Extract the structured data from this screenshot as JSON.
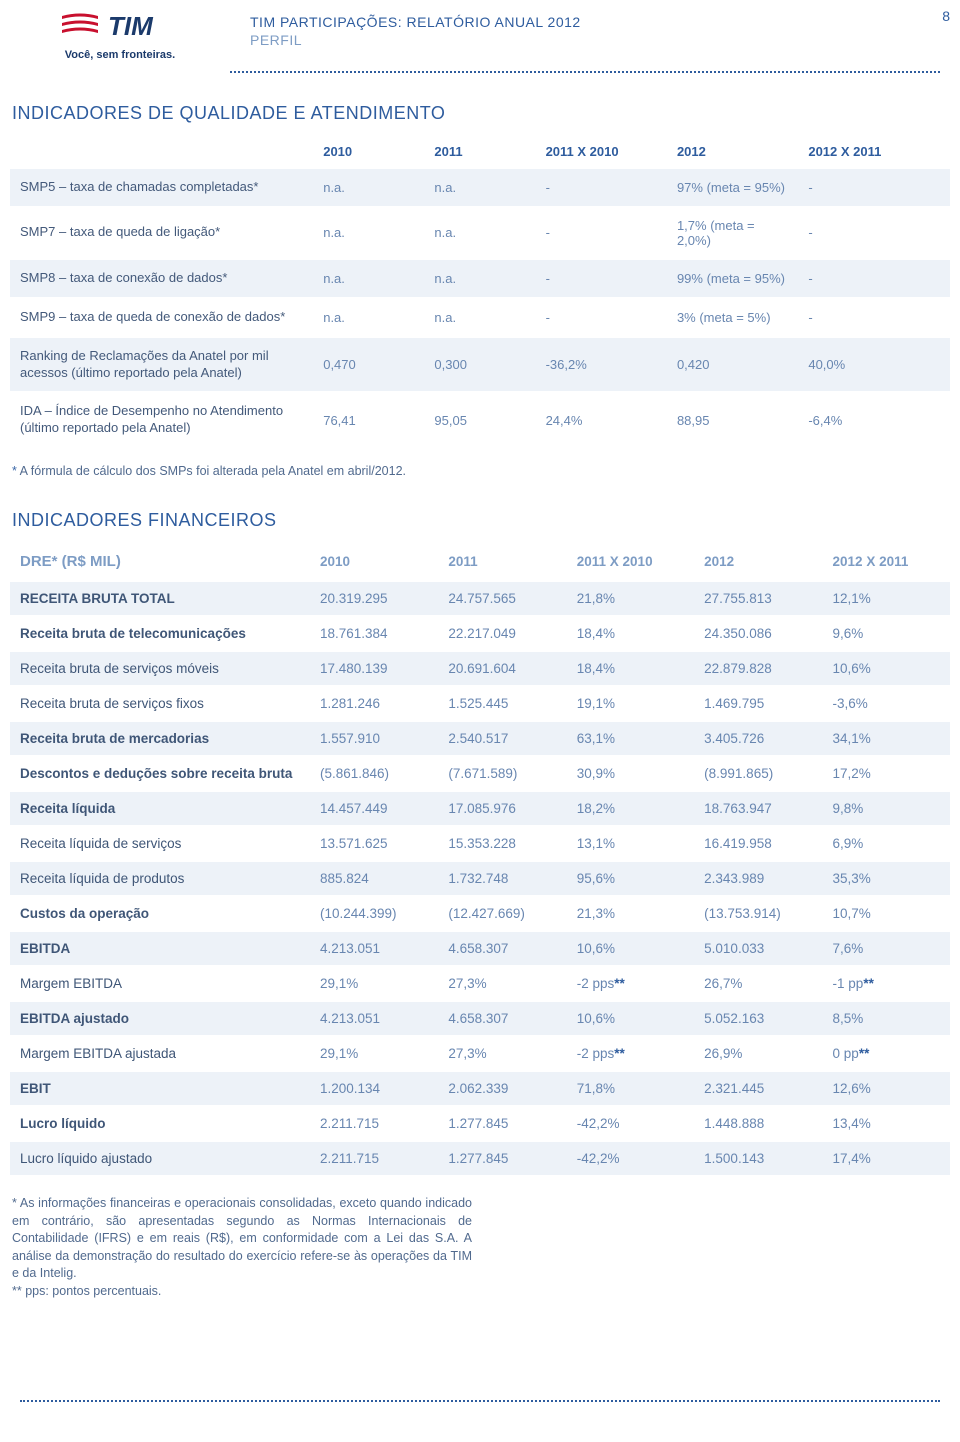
{
  "header": {
    "logo_name": "TIM",
    "tagline": "Você, sem fronteiras.",
    "title": "TIM PARTICIPAÇÕES: RELATÓRIO ANUAL 2012",
    "subtitle": "PERFIL",
    "page_num": "8"
  },
  "colors": {
    "brand_blue": "#2e5c9e",
    "light_blue": "#7d9cc4",
    "value_blue": "#6886b0",
    "zebra": "#edf2f8",
    "logo_red": "#c8102e"
  },
  "quality": {
    "title": "INDICADORES DE QUALIDADE E ATENDIMENTO",
    "columns": [
      "",
      "2010",
      "2011",
      "2011 X 2010",
      "2012",
      "2012 X 2011"
    ],
    "rows": [
      {
        "label": "SMP5 – taxa de chamadas completadas*",
        "v": [
          "n.a.",
          "n.a.",
          "-",
          "97% (meta = 95%)",
          "-"
        ],
        "zebra": true
      },
      {
        "label": "SMP7 – taxa de queda de ligação*",
        "v": [
          "n.a.",
          "n.a.",
          "-",
          "1,7% (meta = 2,0%)",
          "-"
        ],
        "zebra": false
      },
      {
        "label": "SMP8 – taxa de conexão de dados*",
        "v": [
          "n.a.",
          "n.a.",
          "-",
          "99% (meta = 95%)",
          "-"
        ],
        "zebra": true
      },
      {
        "label": "SMP9 – taxa de queda de conexão de dados*",
        "v": [
          "n.a.",
          "n.a.",
          "-",
          "3% (meta = 5%)",
          "-"
        ],
        "zebra": false
      },
      {
        "label": "Ranking de Reclamações da Anatel por mil acessos (último reportado pela Anatel)",
        "v": [
          "0,470",
          "0,300",
          "-36,2%",
          "0,420",
          "40,0%"
        ],
        "zebra": true
      },
      {
        "label": "IDA – Índice de Desempenho no Atendimento (último reportado pela Anatel)",
        "v": [
          "76,41",
          "95,05",
          "24,4%",
          "88,95",
          "-6,4%"
        ],
        "zebra": false
      }
    ],
    "footnote_star": "*",
    "footnote": " A fórmula de cálculo dos SMPs foi alterada pela Anatel em abril/2012."
  },
  "financial": {
    "title": "INDICADORES FINANCEIROS",
    "header_label": "DRE* (R$ MIL)",
    "columns": [
      "2010",
      "2011",
      "2011 X 2010",
      "2012",
      "2012 X 2011"
    ],
    "rows": [
      {
        "label": "RECEITA BRUTA TOTAL",
        "bold": true,
        "v": [
          "20.319.295",
          "24.757.565",
          "21,8%",
          "27.755.813",
          "12,1%"
        ],
        "zebra": true
      },
      {
        "label": "Receita bruta de telecomunicações",
        "bold": true,
        "v": [
          "18.761.384",
          "22.217.049",
          "18,4%",
          "24.350.086",
          "9,6%"
        ],
        "zebra": false
      },
      {
        "label": "Receita bruta de serviços móveis",
        "bold": false,
        "v": [
          "17.480.139",
          "20.691.604",
          "18,4%",
          "22.879.828",
          "10,6%"
        ],
        "zebra": true
      },
      {
        "label": "Receita bruta de serviços fixos",
        "bold": false,
        "v": [
          "1.281.246",
          "1.525.445",
          "19,1%",
          "1.469.795",
          "-3,6%"
        ],
        "zebra": false
      },
      {
        "label": "Receita bruta de mercadorias",
        "bold": true,
        "v": [
          "1.557.910",
          "2.540.517",
          "63,1%",
          "3.405.726",
          "34,1%"
        ],
        "zebra": true
      },
      {
        "label": "Descontos e deduções sobre receita bruta",
        "bold": true,
        "v": [
          "(5.861.846)",
          "(7.671.589)",
          "30,9%",
          "(8.991.865)",
          "17,2%"
        ],
        "zebra": false
      },
      {
        "label": "Receita líquida",
        "bold": true,
        "v": [
          "14.457.449",
          "17.085.976",
          "18,2%",
          "18.763.947",
          "9,8%"
        ],
        "zebra": true
      },
      {
        "label": "Receita líquida de serviços",
        "bold": false,
        "v": [
          "13.571.625",
          "15.353.228",
          "13,1%",
          "16.419.958",
          "6,9%"
        ],
        "zebra": false
      },
      {
        "label": "Receita líquida de produtos",
        "bold": false,
        "v": [
          "885.824",
          "1.732.748",
          "95,6%",
          "2.343.989",
          "35,3%"
        ],
        "zebra": true
      },
      {
        "label": "Custos da operação",
        "bold": true,
        "v": [
          "(10.244.399)",
          "(12.427.669)",
          "21,3%",
          "(13.753.914)",
          "10,7%"
        ],
        "zebra": false
      },
      {
        "label": "EBITDA",
        "bold": true,
        "v": [
          "4.213.051",
          "4.658.307",
          "10,6%",
          "5.010.033",
          "7,6%"
        ],
        "zebra": true
      },
      {
        "label": "Margem EBITDA",
        "bold": false,
        "v": [
          "29,1%",
          "27,3%",
          "-2 pps**",
          "26,7%",
          "-1 pp**"
        ],
        "zebra": false,
        "dstar": true
      },
      {
        "label": "EBITDA ajustado",
        "bold": true,
        "v": [
          "4.213.051",
          "4.658.307",
          "10,6%",
          "5.052.163",
          "8,5%"
        ],
        "zebra": true
      },
      {
        "label": "Margem EBITDA ajustada",
        "bold": false,
        "v": [
          "29,1%",
          "27,3%",
          "-2 pps**",
          "26,9%",
          "0 pp**"
        ],
        "zebra": false,
        "dstar": true
      },
      {
        "label": "EBIT",
        "bold": true,
        "v": [
          "1.200.134",
          "2.062.339",
          "71,8%",
          "2.321.445",
          "12,6%"
        ],
        "zebra": true
      },
      {
        "label": "Lucro líquido",
        "bold": true,
        "v": [
          "2.211.715",
          "1.277.845",
          "-42,2%",
          "1.448.888",
          "13,4%"
        ],
        "zebra": false
      },
      {
        "label": "Lucro líquido ajustado",
        "bold": false,
        "v": [
          "2.211.715",
          "1.277.845",
          "-42,2%",
          "1.500.143",
          "17,4%"
        ],
        "zebra": true
      }
    ],
    "footnote1_star": "*",
    "footnote1": " As informações financeiras e operacionais consolidadas, exceto quando indicado em contrário, são apresentadas segundo as Normas Internacionais de Contabilidade (IFRS) e em reais (R$), em conformidade com a Lei das S.A. A análise da demonstração do resultado do exercício refere-se às operações da TIM e da Intelig.",
    "footnote2_star": "**",
    "footnote2": " pps: pontos percentuais."
  }
}
